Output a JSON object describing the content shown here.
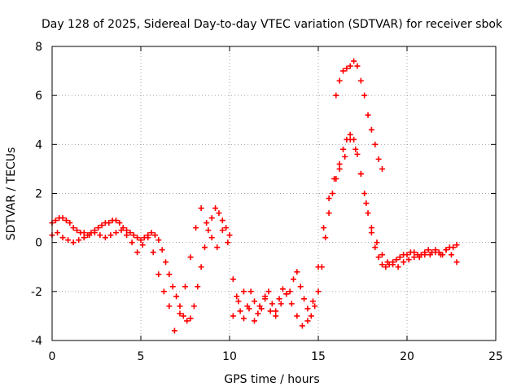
{
  "chart_data": {
    "type": "scatter",
    "title": "Day 128 of 2025, Sidereal Day-to-day VTEC variation (SDTVAR) for receiver sbok",
    "xlabel": "GPS time / hours",
    "ylabel": "SDTVAR / TECUs",
    "xlim": [
      0,
      25
    ],
    "ylim": [
      -4,
      8
    ],
    "xticks": [
      "0",
      "5",
      "10",
      "15",
      "20",
      "25"
    ],
    "yticks": [
      "-4",
      "-2",
      "0",
      "2",
      "4",
      "6",
      "8"
    ],
    "xtick_values": [
      0,
      5,
      10,
      15,
      20,
      25
    ],
    "ytick_values": [
      -4,
      -2,
      0,
      2,
      4,
      6,
      8
    ],
    "grid": true,
    "marker": "+",
    "series": [
      {
        "name": "sdtvar",
        "color": "#ff0000",
        "x": [
          0.0,
          0.2,
          0.4,
          0.6,
          0.8,
          1.0,
          1.2,
          1.4,
          1.6,
          1.8,
          2.0,
          2.2,
          2.4,
          2.6,
          2.8,
          3.0,
          3.2,
          3.4,
          3.6,
          3.8,
          4.0,
          4.2,
          4.4,
          4.6,
          4.8,
          5.0,
          5.2,
          5.4,
          5.6,
          5.8,
          6.0,
          6.2,
          6.4,
          6.6,
          6.8,
          7.0,
          7.2,
          7.4,
          7.6,
          7.8,
          8.0,
          8.2,
          8.4,
          8.6,
          8.8,
          9.0,
          9.2,
          9.4,
          9.6,
          9.8,
          10.0,
          10.2,
          10.4,
          10.6,
          10.8,
          11.0,
          11.2,
          11.4,
          11.6,
          11.8,
          12.0,
          12.2,
          12.4,
          12.6,
          12.8,
          13.0,
          13.2,
          13.4,
          13.6,
          13.8,
          14.0,
          14.2,
          14.4,
          14.6,
          14.8,
          15.0,
          15.2,
          15.4,
          15.6,
          15.8,
          16.0,
          16.2,
          16.4,
          16.6,
          16.8,
          17.0,
          17.2,
          17.4,
          17.6,
          17.8,
          18.0,
          18.2,
          18.4,
          18.6,
          18.8,
          19.0,
          19.2,
          19.4,
          19.6,
          19.8,
          20.0,
          20.2,
          20.4,
          20.6,
          20.8,
          21.0,
          21.2,
          21.4,
          21.6,
          21.8,
          22.0,
          22.2,
          22.4,
          22.6,
          22.8,
          0.0,
          0.3,
          0.6,
          0.9,
          1.2,
          1.5,
          1.8,
          2.1,
          2.4,
          2.7,
          3.0,
          3.3,
          3.6,
          3.9,
          4.2,
          4.5,
          4.8,
          5.1,
          5.4,
          5.7,
          6.0,
          6.3,
          6.6,
          6.9,
          7.2,
          7.5,
          7.8,
          8.1,
          8.4,
          8.7,
          9.0,
          9.3,
          9.6,
          9.9,
          10.2,
          10.5,
          10.8,
          11.1,
          11.4,
          11.7,
          12.0,
          12.3,
          12.6,
          12.9,
          13.2,
          13.5,
          13.8,
          14.1,
          14.4,
          14.7,
          15.0,
          15.3,
          15.6,
          15.9,
          16.2,
          16.5,
          16.8,
          17.1,
          17.4,
          17.7,
          18.0,
          18.3,
          18.6,
          18.9,
          19.2,
          19.5,
          19.8,
          20.1,
          20.4,
          20.7,
          21.0,
          21.3,
          21.6,
          21.9,
          22.2,
          22.5,
          22.8,
          16.0,
          16.2,
          16.4,
          16.6,
          16.8,
          17.0,
          17.2,
          17.4,
          17.6,
          17.8,
          18.0,
          18.2,
          18.4,
          18.6
        ],
        "y": [
          0.8,
          0.9,
          1.0,
          1.0,
          0.9,
          0.8,
          0.6,
          0.5,
          0.4,
          0.4,
          0.3,
          0.4,
          0.5,
          0.6,
          0.7,
          0.8,
          0.8,
          0.9,
          0.9,
          0.8,
          0.6,
          0.5,
          0.4,
          0.3,
          0.2,
          0.1,
          0.2,
          0.3,
          0.4,
          0.3,
          0.1,
          -0.3,
          -0.8,
          -1.3,
          -1.8,
          -2.2,
          -2.6,
          -3.0,
          -3.2,
          -3.1,
          -2.6,
          -1.8,
          -1.0,
          -0.2,
          0.5,
          1.0,
          1.4,
          1.2,
          0.9,
          0.6,
          0.3,
          -1.5,
          -2.2,
          -2.8,
          -3.1,
          -2.6,
          -2.0,
          -2.4,
          -2.9,
          -2.7,
          -2.2,
          -2.0,
          -2.5,
          -2.8,
          -2.3,
          -1.9,
          -2.1,
          -2.0,
          -1.5,
          -1.2,
          -1.8,
          -2.3,
          -2.7,
          -3.0,
          -2.6,
          -2.0,
          -1.0,
          0.2,
          1.2,
          2.0,
          2.6,
          3.2,
          3.8,
          4.2,
          4.4,
          4.2,
          3.6,
          2.8,
          2.0,
          1.2,
          0.4,
          -0.2,
          -0.6,
          -0.9,
          -1.0,
          -0.9,
          -0.8,
          -0.7,
          -0.6,
          -0.5,
          -0.5,
          -0.4,
          -0.4,
          -0.5,
          -0.5,
          -0.4,
          -0.3,
          -0.4,
          -0.3,
          -0.4,
          -0.5,
          -0.3,
          -0.2,
          -0.2,
          -0.1,
          0.3,
          0.4,
          0.2,
          0.1,
          0.0,
          0.1,
          0.2,
          0.3,
          0.4,
          0.3,
          0.2,
          0.3,
          0.4,
          0.5,
          0.3,
          0.0,
          -0.4,
          -0.1,
          0.2,
          -0.4,
          -1.3,
          -2.0,
          -2.6,
          -3.6,
          -2.9,
          -1.8,
          -0.6,
          0.6,
          1.4,
          0.8,
          0.2,
          -0.2,
          0.5,
          0.0,
          -3.0,
          -2.4,
          -2.0,
          -2.7,
          -3.2,
          -2.6,
          -2.3,
          -2.8,
          -3.0,
          -2.5,
          -2.1,
          -2.5,
          -3.0,
          -3.4,
          -3.2,
          -2.4,
          -1.0,
          0.6,
          1.8,
          2.6,
          3.0,
          3.5,
          4.2,
          3.8,
          2.8,
          1.6,
          0.6,
          0.0,
          -0.5,
          -0.8,
          -0.9,
          -1.0,
          -0.8,
          -0.7,
          -0.6,
          -0.6,
          -0.5,
          -0.5,
          -0.4,
          -0.5,
          -0.3,
          -0.5,
          -0.8,
          6.0,
          6.6,
          7.0,
          7.1,
          7.2,
          7.4,
          7.2,
          6.6,
          6.0,
          5.2,
          4.6,
          4.0,
          3.4,
          3.0
        ]
      }
    ]
  }
}
